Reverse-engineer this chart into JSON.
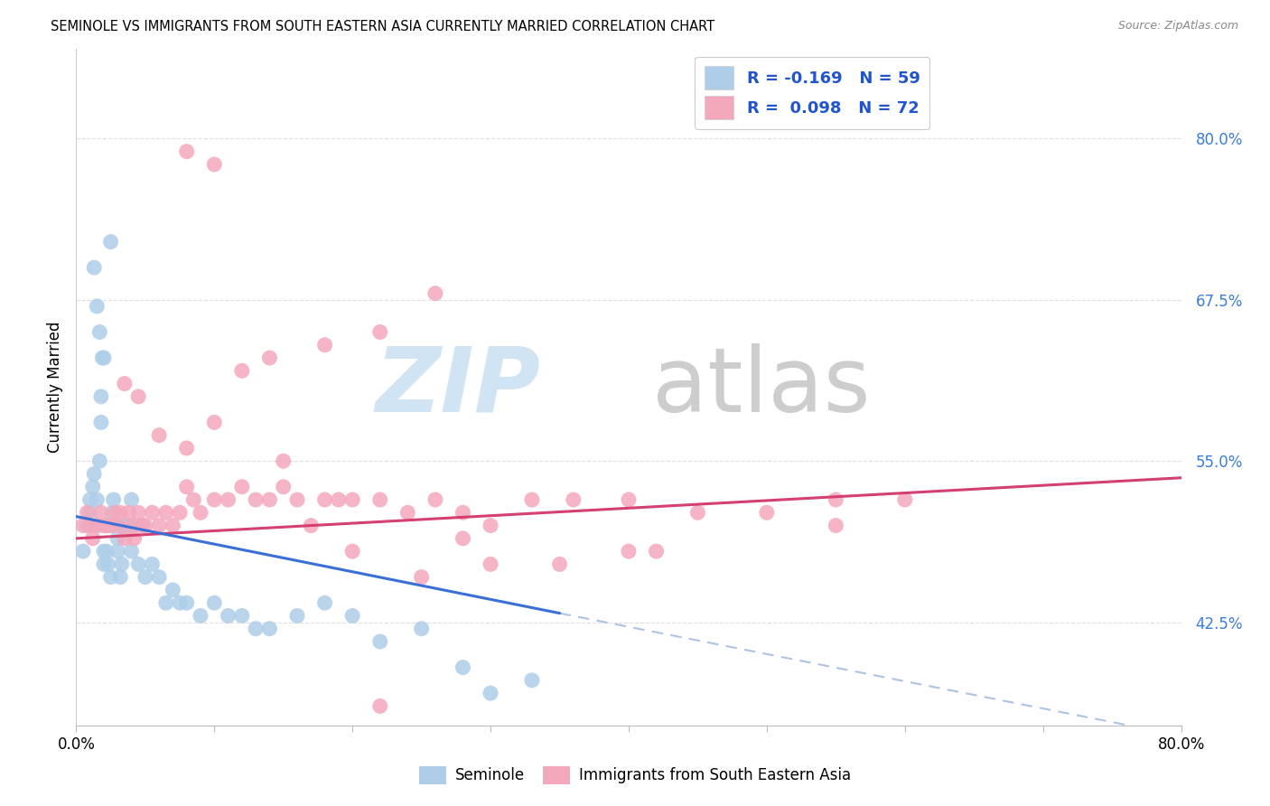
{
  "title": "SEMINOLE VS IMMIGRANTS FROM SOUTH EASTERN ASIA CURRENTLY MARRIED CORRELATION CHART",
  "source": "Source: ZipAtlas.com",
  "ylabel": "Currently Married",
  "ytick_labels": [
    "80.0%",
    "67.5%",
    "55.0%",
    "42.5%"
  ],
  "ytick_values": [
    0.8,
    0.675,
    0.55,
    0.425
  ],
  "xlim": [
    0.0,
    0.8
  ],
  "ylim": [
    0.345,
    0.87
  ],
  "color_blue": "#aecde8",
  "color_pink": "#f4a8bc",
  "blue_line_color": "#3a6fd8",
  "pink_line_color": "#d44070",
  "dashed_line_color": "#a0b8e0",
  "watermark_zip_color": "#d0e4f4",
  "watermark_atlas_color": "#c8c8c8",
  "seminole_x": [
    0.005,
    0.008,
    0.01,
    0.01,
    0.012,
    0.013,
    0.015,
    0.015,
    0.017,
    0.018,
    0.018,
    0.019,
    0.02,
    0.02,
    0.021,
    0.022,
    0.023,
    0.025,
    0.025,
    0.026,
    0.027,
    0.028,
    0.03,
    0.03,
    0.032,
    0.033,
    0.035,
    0.037,
    0.04,
    0.04,
    0.042,
    0.045,
    0.048,
    0.05,
    0.055,
    0.06,
    0.065,
    0.07,
    0.075,
    0.08,
    0.09,
    0.1,
    0.11,
    0.12,
    0.13,
    0.14,
    0.16,
    0.18,
    0.2,
    0.22,
    0.25,
    0.28,
    0.3,
    0.33,
    0.013,
    0.015,
    0.017,
    0.02,
    0.025
  ],
  "seminole_y": [
    0.48,
    0.5,
    0.51,
    0.52,
    0.53,
    0.54,
    0.5,
    0.52,
    0.55,
    0.58,
    0.6,
    0.63,
    0.48,
    0.47,
    0.5,
    0.48,
    0.47,
    0.46,
    0.5,
    0.51,
    0.52,
    0.5,
    0.49,
    0.48,
    0.46,
    0.47,
    0.5,
    0.5,
    0.48,
    0.52,
    0.5,
    0.47,
    0.5,
    0.46,
    0.47,
    0.46,
    0.44,
    0.45,
    0.44,
    0.44,
    0.43,
    0.44,
    0.43,
    0.43,
    0.42,
    0.42,
    0.43,
    0.44,
    0.43,
    0.41,
    0.42,
    0.39,
    0.37,
    0.38,
    0.7,
    0.67,
    0.65,
    0.63,
    0.72
  ],
  "immigrants_x": [
    0.005,
    0.008,
    0.01,
    0.012,
    0.015,
    0.018,
    0.02,
    0.022,
    0.025,
    0.028,
    0.03,
    0.032,
    0.035,
    0.038,
    0.04,
    0.042,
    0.045,
    0.048,
    0.05,
    0.055,
    0.06,
    0.065,
    0.07,
    0.075,
    0.08,
    0.085,
    0.09,
    0.1,
    0.11,
    0.12,
    0.13,
    0.14,
    0.15,
    0.16,
    0.17,
    0.18,
    0.19,
    0.2,
    0.22,
    0.24,
    0.26,
    0.28,
    0.3,
    0.33,
    0.36,
    0.4,
    0.45,
    0.5,
    0.55,
    0.6,
    0.035,
    0.045,
    0.06,
    0.08,
    0.1,
    0.12,
    0.14,
    0.18,
    0.22,
    0.26,
    0.55,
    0.4,
    0.3,
    0.25,
    0.2,
    0.35,
    0.42,
    0.15,
    0.1,
    0.08,
    0.28,
    0.22
  ],
  "immigrants_y": [
    0.5,
    0.51,
    0.5,
    0.49,
    0.5,
    0.51,
    0.5,
    0.5,
    0.5,
    0.51,
    0.5,
    0.51,
    0.49,
    0.51,
    0.5,
    0.49,
    0.51,
    0.5,
    0.5,
    0.51,
    0.5,
    0.51,
    0.5,
    0.51,
    0.53,
    0.52,
    0.51,
    0.52,
    0.52,
    0.53,
    0.52,
    0.52,
    0.53,
    0.52,
    0.5,
    0.52,
    0.52,
    0.52,
    0.52,
    0.51,
    0.52,
    0.51,
    0.5,
    0.52,
    0.52,
    0.52,
    0.51,
    0.51,
    0.52,
    0.52,
    0.61,
    0.6,
    0.57,
    0.56,
    0.58,
    0.62,
    0.63,
    0.64,
    0.65,
    0.68,
    0.5,
    0.48,
    0.47,
    0.46,
    0.48,
    0.47,
    0.48,
    0.55,
    0.78,
    0.79,
    0.49,
    0.36
  ],
  "blue_line_x": [
    0.0,
    0.35
  ],
  "blue_line_y": [
    0.507,
    0.432
  ],
  "pink_line_x": [
    0.0,
    0.8
  ],
  "pink_line_y": [
    0.49,
    0.537
  ],
  "dashed_line_x": [
    0.35,
    0.8
  ],
  "dashed_line_y": [
    0.432,
    0.337
  ],
  "background_color": "#ffffff",
  "grid_color": "#dedede",
  "xtick_positions": [
    0.0,
    0.1,
    0.2,
    0.3,
    0.4,
    0.5,
    0.6,
    0.7,
    0.8
  ]
}
